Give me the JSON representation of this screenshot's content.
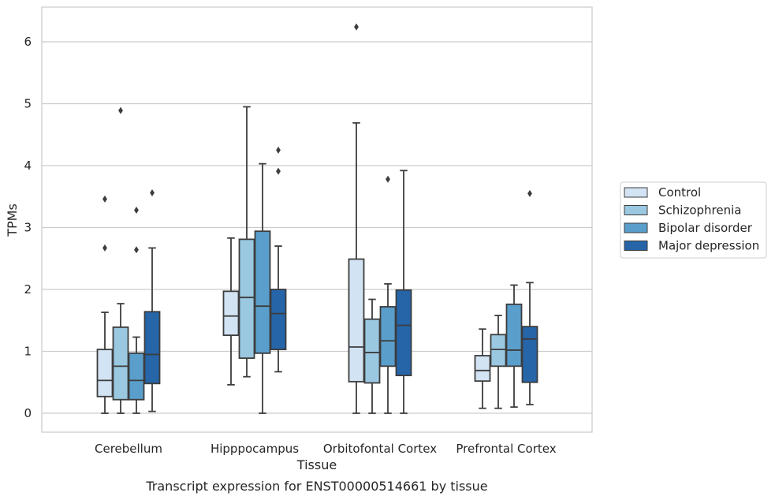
{
  "caption": "Transcript expression for ENST00000514661 by tissue",
  "chart_data": {
    "type": "box",
    "xlabel": "Tissue",
    "ylabel": "TPMs",
    "ylim": [
      -0.3,
      6.55
    ],
    "yticks": [
      0,
      1,
      2,
      3,
      4,
      5,
      6
    ],
    "grid": "horizontal",
    "legend_placement": "right-center",
    "categories": [
      "Cerebellum",
      "Hipppocampus",
      "Orbitofontal Cortex",
      "Prefrontal Cortex"
    ],
    "series": [
      {
        "name": "Control",
        "color": "#d2e3f3",
        "boxes": [
          {
            "whislo": 0.0,
            "q1": 0.27,
            "med": 0.53,
            "q3": 1.03,
            "whishi": 1.63,
            "fliers": [
              2.67,
              3.46
            ]
          },
          {
            "whislo": 0.46,
            "q1": 1.26,
            "med": 1.57,
            "q3": 1.97,
            "whishi": 2.83,
            "fliers": []
          },
          {
            "whislo": 0.0,
            "q1": 0.51,
            "med": 1.07,
            "q3": 2.49,
            "whishi": 4.69,
            "fliers": [
              6.24
            ]
          },
          {
            "whislo": 0.08,
            "q1": 0.52,
            "med": 0.69,
            "q3": 0.93,
            "whishi": 1.36,
            "fliers": []
          }
        ]
      },
      {
        "name": "Schizophrenia",
        "color": "#9ac8e0",
        "boxes": [
          {
            "whislo": 0.0,
            "q1": 0.22,
            "med": 0.76,
            "q3": 1.39,
            "whishi": 1.77,
            "fliers": [
              4.89
            ]
          },
          {
            "whislo": 0.59,
            "q1": 0.89,
            "med": 1.87,
            "q3": 2.81,
            "whishi": 4.95,
            "fliers": []
          },
          {
            "whislo": 0.0,
            "q1": 0.49,
            "med": 0.98,
            "q3": 1.52,
            "whishi": 1.84,
            "fliers": []
          },
          {
            "whislo": 0.08,
            "q1": 0.76,
            "med": 1.03,
            "q3": 1.27,
            "whishi": 1.58,
            "fliers": []
          }
        ]
      },
      {
        "name": "Bipolar disorder",
        "color": "#5a9ecc",
        "boxes": [
          {
            "whislo": 0.0,
            "q1": 0.22,
            "med": 0.53,
            "q3": 0.97,
            "whishi": 1.23,
            "fliers": [
              2.64,
              3.28
            ]
          },
          {
            "whislo": 0.0,
            "q1": 0.97,
            "med": 1.73,
            "q3": 2.94,
            "whishi": 4.03,
            "fliers": []
          },
          {
            "whislo": 0.0,
            "q1": 0.76,
            "med": 1.17,
            "q3": 1.72,
            "whishi": 2.09,
            "fliers": [
              3.78
            ]
          },
          {
            "whislo": 0.1,
            "q1": 0.76,
            "med": 1.02,
            "q3": 1.76,
            "whishi": 2.07,
            "fliers": []
          }
        ]
      },
      {
        "name": "Major depression",
        "color": "#2565a8",
        "boxes": [
          {
            "whislo": 0.03,
            "q1": 0.48,
            "med": 0.95,
            "q3": 1.64,
            "whishi": 2.67,
            "fliers": [
              3.56
            ]
          },
          {
            "whislo": 0.67,
            "q1": 1.03,
            "med": 1.61,
            "q3": 2.0,
            "whishi": 2.7,
            "fliers": [
              3.91,
              4.25
            ]
          },
          {
            "whislo": 0.0,
            "q1": 0.61,
            "med": 1.42,
            "q3": 1.99,
            "whishi": 3.92,
            "fliers": []
          },
          {
            "whislo": 0.14,
            "q1": 0.5,
            "med": 1.2,
            "q3": 1.4,
            "whishi": 2.11,
            "fliers": [
              3.55
            ]
          }
        ]
      }
    ]
  }
}
